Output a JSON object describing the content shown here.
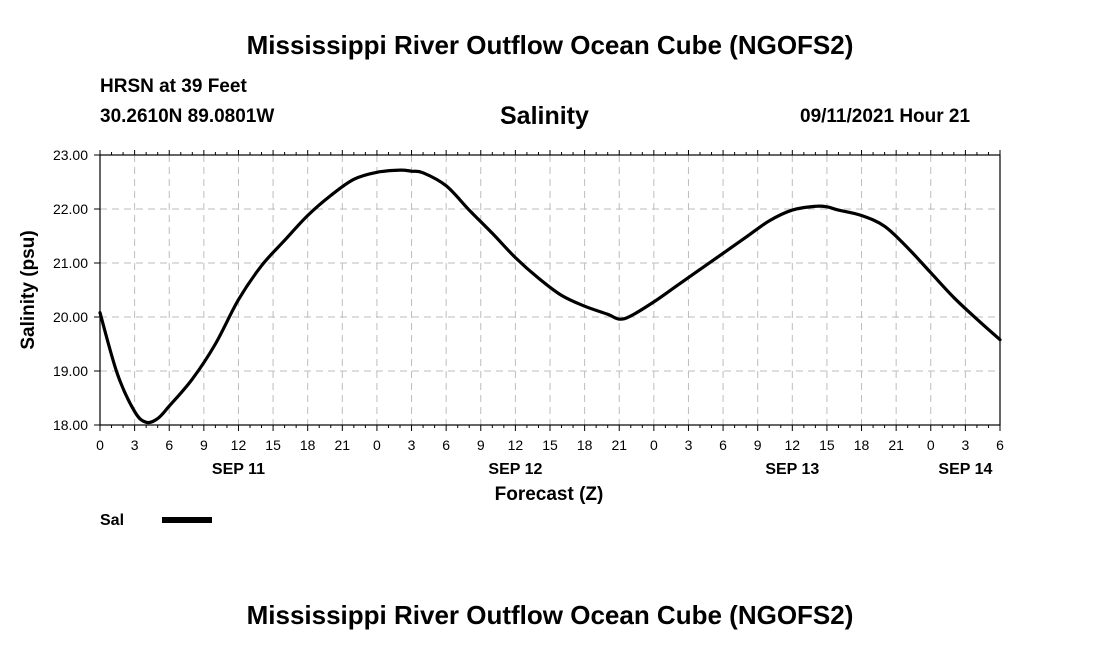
{
  "page": {
    "title_top": "Mississippi River Outflow Ocean Cube (NGOFS2)",
    "title_bottom": "Mississippi River Outflow Ocean Cube (NGOFS2)",
    "station_label": "HRSN at 39 Feet",
    "coords_label": "30.2610N  89.0801W",
    "variable_label": "Salinity",
    "run_label": "09/11/2021 Hour 21"
  },
  "chart_data": {
    "type": "line",
    "title": "Salinity",
    "ylabel": "Salinity (psu)",
    "xlabel": "Forecast (Z)",
    "ylim": [
      18,
      23
    ],
    "xlim_hours": [
      0,
      78
    ],
    "grid": true,
    "y_ticks": [
      "18.00",
      "19.00",
      "20.00",
      "21.00",
      "22.00",
      "23.00"
    ],
    "x_hour_ticks": [
      "0",
      "3",
      "6",
      "9",
      "12",
      "15",
      "18",
      "21",
      "0",
      "3",
      "6",
      "9",
      "12",
      "15",
      "18",
      "21",
      "0",
      "3",
      "6",
      "9",
      "12",
      "15",
      "18",
      "21",
      "0",
      "3",
      "6"
    ],
    "date_labels": [
      {
        "label": "SEP 11",
        "hour": 12
      },
      {
        "label": "SEP 12",
        "hour": 36
      },
      {
        "label": "SEP 13",
        "hour": 60
      },
      {
        "label": "SEP 14",
        "hour": 75
      }
    ],
    "legend": {
      "label": "Sal",
      "placement": "bottom-left"
    },
    "series": [
      {
        "name": "Sal",
        "color": "#000000",
        "x": [
          0,
          1.5,
          3,
          4,
          5,
          6,
          8,
          10,
          12,
          14,
          16,
          18,
          20,
          22,
          24,
          26,
          27,
          28,
          30,
          32,
          34,
          36,
          38,
          40,
          42,
          44,
          45,
          46,
          48,
          50,
          52,
          54,
          56,
          58,
          60,
          62,
          63,
          64,
          66,
          68,
          70,
          72,
          74,
          76,
          78
        ],
        "y": [
          20.08,
          18.95,
          18.25,
          18.05,
          18.12,
          18.35,
          18.85,
          19.5,
          20.32,
          20.95,
          21.42,
          21.88,
          22.25,
          22.55,
          22.68,
          22.72,
          22.7,
          22.67,
          22.43,
          21.98,
          21.55,
          21.1,
          20.72,
          20.4,
          20.2,
          20.05,
          19.96,
          20.02,
          20.28,
          20.58,
          20.88,
          21.18,
          21.48,
          21.78,
          21.98,
          22.05,
          22.04,
          21.98,
          21.88,
          21.68,
          21.28,
          20.82,
          20.36,
          19.96,
          19.58
        ]
      }
    ]
  }
}
